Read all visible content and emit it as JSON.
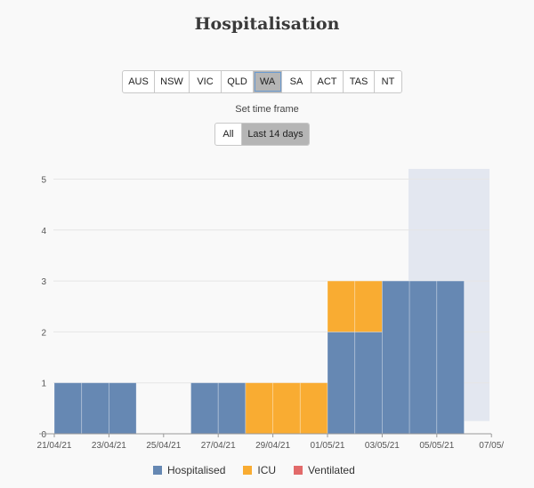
{
  "title": "Hospitalisation",
  "states": [
    "AUS",
    "NSW",
    "VIC",
    "QLD",
    "WA",
    "SA",
    "ACT",
    "TAS",
    "NT"
  ],
  "active_state": "WA",
  "timeframe": {
    "label": "Set time frame",
    "options": [
      "All",
      "Last 14 days"
    ],
    "active": "Last 14 days"
  },
  "colors": {
    "hospitalised": "#6688b3",
    "icu": "#f9ac32",
    "ventilated": "#e26a6a",
    "projection_band": "#e3e7f0"
  },
  "chart_data": {
    "type": "bar",
    "categories": [
      "21/04/21",
      "22/04/21",
      "23/04/21",
      "24/04/21",
      "25/04/21",
      "26/04/21",
      "27/04/21",
      "28/04/21",
      "29/04/21",
      "30/04/21",
      "01/05/21",
      "02/05/21",
      "03/05/21",
      "04/05/21",
      "05/05/21",
      "06/05/21"
    ],
    "series": [
      {
        "name": "Hospitalised",
        "values": [
          1,
          1,
          1,
          0,
          0,
          1,
          1,
          0,
          0,
          0,
          2,
          2,
          3,
          3,
          3,
          0
        ]
      },
      {
        "name": "ICU",
        "values": [
          0,
          0,
          0,
          0,
          0,
          0,
          0,
          1,
          1,
          1,
          1,
          1,
          0,
          0,
          0,
          0
        ]
      },
      {
        "name": "Ventilated",
        "values": [
          0,
          0,
          0,
          0,
          0,
          0,
          0,
          0,
          0,
          0,
          0,
          0,
          0,
          0,
          0,
          0
        ]
      }
    ],
    "x_ticks": [
      "21/04/21",
      "23/04/21",
      "25/04/21",
      "27/04/21",
      "29/04/21",
      "01/05/21",
      "03/05/21",
      "05/05/21",
      "07/05/"
    ],
    "y_ticks": [
      0,
      1,
      2,
      3,
      4,
      5
    ],
    "ylim": [
      0,
      5.2
    ],
    "legend": [
      "Hospitalised",
      "ICU",
      "Ventilated"
    ],
    "legend_position": "bottom"
  }
}
